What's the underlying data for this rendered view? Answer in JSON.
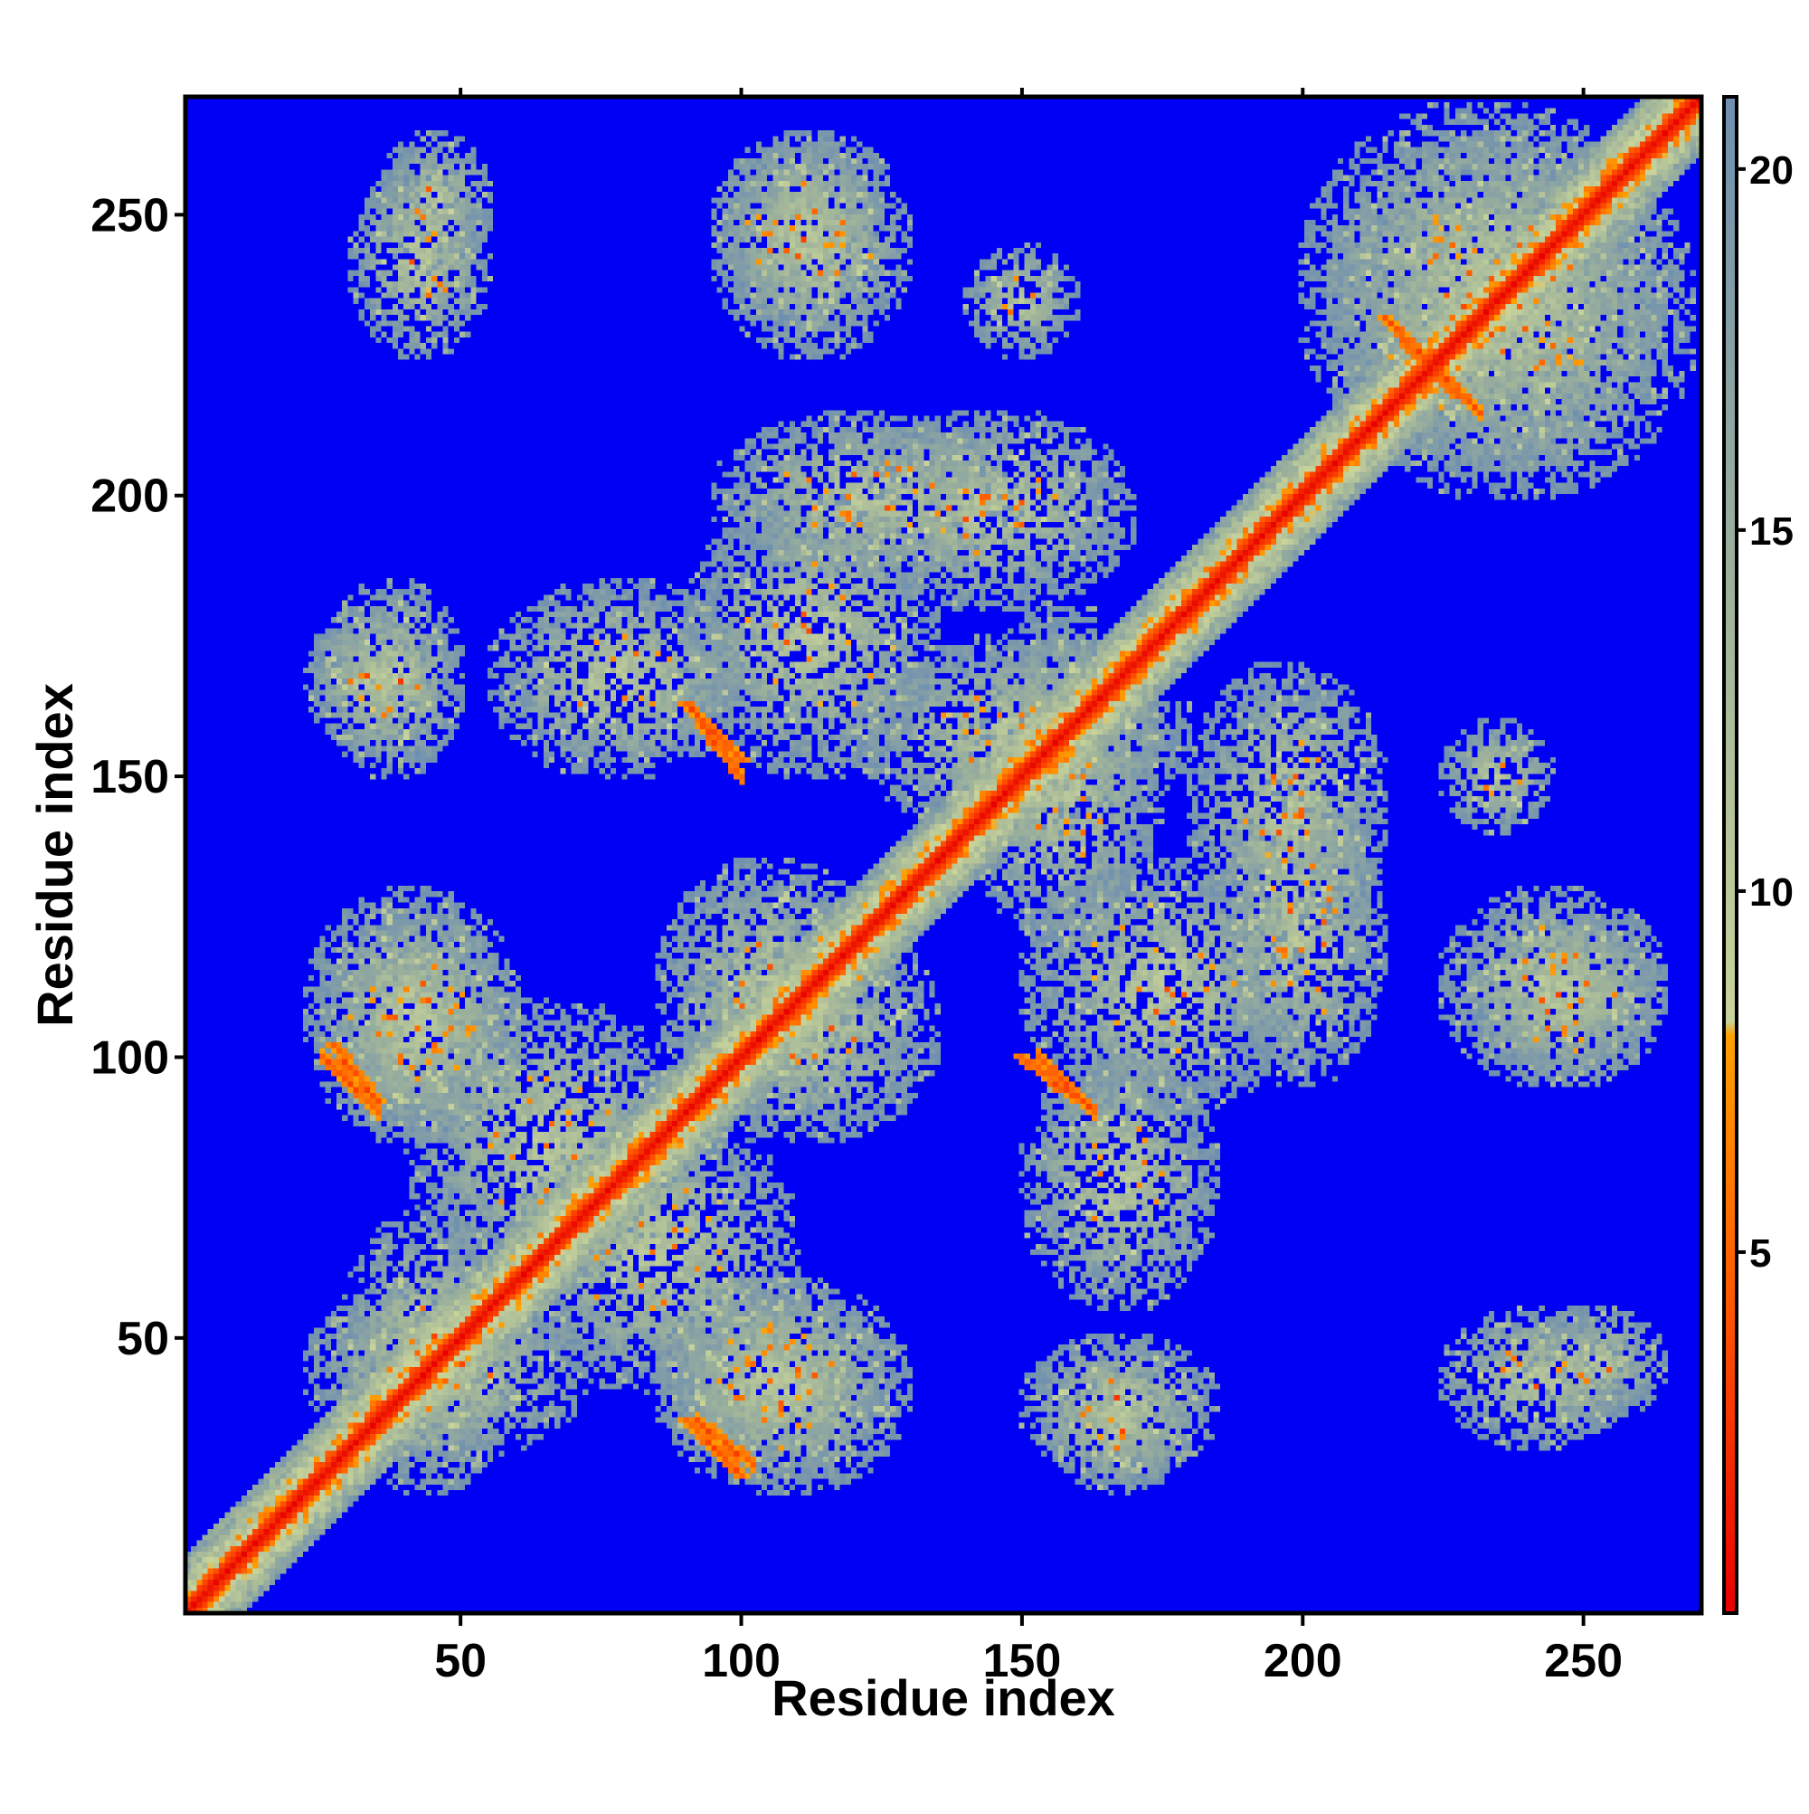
{
  "chart_data": {
    "type": "heatmap",
    "title": "",
    "xlabel": "Residue index",
    "ylabel": "Residue index",
    "xlim": [
      1,
      271
    ],
    "ylim": [
      1,
      271
    ],
    "x_ticks": [
      50,
      100,
      150,
      200,
      250
    ],
    "y_ticks": [
      50,
      100,
      150,
      200,
      250
    ],
    "colorbar": {
      "ticks": [
        5,
        10,
        15,
        20
      ],
      "range": [
        0,
        21
      ],
      "colors": {
        "low": "#e80000",
        "mid_low": "#ff7a00",
        "mid": "#ffa500",
        "pale": "#c9d49a",
        "green_grey": "#9fb39a",
        "high": "#0000f5"
      },
      "stops": [
        {
          "value": 0,
          "color": "#e80000"
        },
        {
          "value": 4,
          "color": "#ff5000"
        },
        {
          "value": 8,
          "color": "#ffa000"
        },
        {
          "value": 8.2,
          "color": "#c9d49a"
        },
        {
          "value": 14,
          "color": "#9fb39a"
        },
        {
          "value": 21,
          "color": "#6f8fb0"
        }
      ]
    },
    "background_color": "#0000f5",
    "matrix_size": 271,
    "contact_features": [
      {
        "type": "diagonal",
        "from": 1,
        "to": 271
      },
      {
        "type": "block",
        "x": [
          28,
          60
        ],
        "y": [
          22,
          72
        ]
      },
      {
        "type": "block",
        "x": [
          60,
          110
        ],
        "y": [
          40,
          90
        ]
      },
      {
        "type": "block",
        "x": [
          85,
          130
        ],
        "y": [
          22,
          60
        ]
      },
      {
        "type": "block",
        "x": [
          25,
          60
        ],
        "y": [
          85,
          125
        ]
      },
      {
        "type": "block",
        "x": [
          90,
          135
        ],
        "y": [
          85,
          125
        ]
      },
      {
        "type": "block",
        "x": [
          55,
          100
        ],
        "y": [
          150,
          185
        ]
      },
      {
        "type": "block",
        "x": [
          22,
          45
        ],
        "y": [
          155,
          180
        ]
      },
      {
        "type": "block",
        "x": [
          95,
          150
        ],
        "y": [
          185,
          215
        ]
      },
      {
        "type": "block",
        "x": [
          120,
          180
        ],
        "y": [
          140,
          175
        ]
      },
      {
        "type": "block",
        "x": [
          150,
          200
        ],
        "y": [
          90,
          135
        ]
      },
      {
        "type": "block",
        "x": [
          150,
          185
        ],
        "y": [
          25,
          50
        ]
      },
      {
        "type": "block",
        "x": [
          180,
          215
        ],
        "y": [
          120,
          170
        ]
      },
      {
        "type": "block",
        "x": [
          225,
          260
        ],
        "y": [
          30,
          55
        ]
      },
      {
        "type": "block",
        "x": [
          225,
          265
        ],
        "y": [
          95,
          130
        ]
      },
      {
        "type": "block",
        "x": [
          205,
          270
        ],
        "y": [
          200,
          265
        ]
      },
      {
        "type": "block",
        "x": [
          95,
          125
        ],
        "y": [
          230,
          265
        ]
      },
      {
        "type": "block",
        "x": [
          35,
          55
        ],
        "y": [
          240,
          265
        ]
      },
      {
        "type": "block",
        "x": [
          140,
          160
        ],
        "y": [
          225,
          245
        ]
      },
      {
        "type": "antidiagonal",
        "x": [
          27,
          35
        ],
        "y": [
          92,
          102
        ]
      },
      {
        "type": "antidiagonal",
        "x": [
          90,
          100
        ],
        "y": [
          25,
          35
        ]
      },
      {
        "type": "antidiagonal",
        "x": [
          215,
          228
        ],
        "y": [
          218,
          232
        ]
      },
      {
        "type": "antidiagonal",
        "x": [
          90,
          100
        ],
        "y": [
          153,
          163
        ]
      },
      {
        "type": "antidiagonal",
        "x": [
          150,
          160
        ],
        "y": [
          92,
          100
        ]
      }
    ]
  }
}
